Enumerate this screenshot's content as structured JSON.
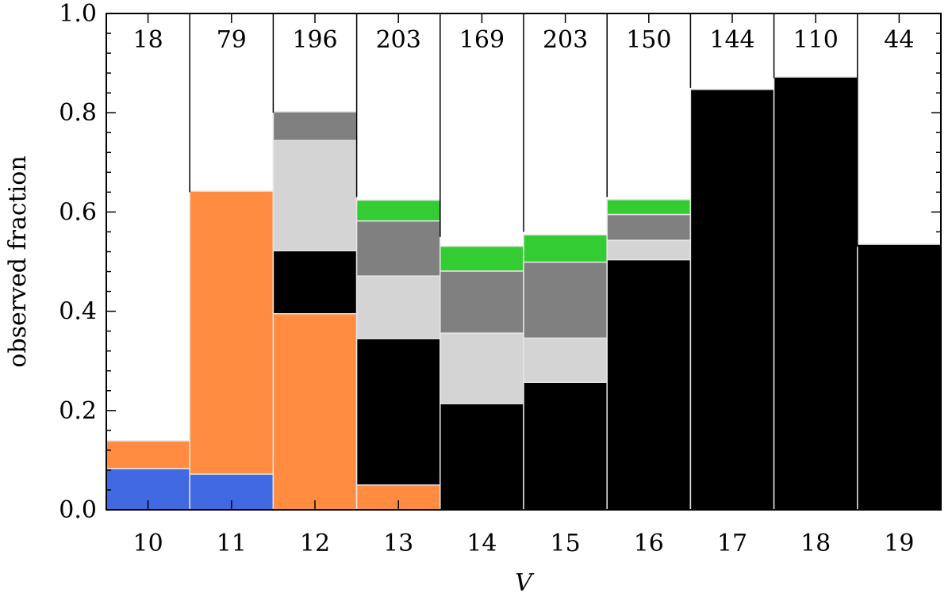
{
  "chart_data": {
    "type": "bar",
    "stacked": true,
    "xlabel": "V",
    "ylabel": "observed fraction",
    "ylim": [
      0.0,
      1.0
    ],
    "yticks": [
      "0.0",
      "0.2",
      "0.4",
      "0.6",
      "0.8",
      "1.0"
    ],
    "categories": [
      "10",
      "11",
      "12",
      "13",
      "14",
      "15",
      "16",
      "17",
      "18",
      "19"
    ],
    "counts": [
      "18",
      "79",
      "196",
      "203",
      "169",
      "203",
      "150",
      "144",
      "110",
      "44"
    ],
    "divider_bottoms": [
      0.8,
      0.64,
      0.8,
      0.63,
      0.55,
      0.56,
      0.63,
      0.85,
      0.87,
      0.53
    ],
    "series": [
      {
        "color": "#000000",
        "values": [
          0,
          0,
          0.127,
          0.295,
          0.214,
          0.257,
          0.504,
          0.847,
          0.872,
          0.535
        ]
      },
      {
        "color": "#d4d4d4",
        "values": [
          0,
          0,
          0.222,
          0.126,
          0.142,
          0.089,
          0.039,
          0,
          0,
          0
        ]
      },
      {
        "color": "#808080",
        "values": [
          0,
          0,
          0.058,
          0.111,
          0.125,
          0.153,
          0.052,
          0,
          0,
          0
        ]
      },
      {
        "color": "#33cc33",
        "values": [
          0,
          0,
          0,
          0.042,
          0.05,
          0.055,
          0.03,
          0,
          0,
          0
        ]
      },
      {
        "color": "#ff8c40",
        "values": [
          0.056,
          0.57,
          0.395,
          0.05,
          0,
          0,
          0,
          0,
          0,
          0
        ]
      },
      {
        "color": "#4169e1",
        "values": [
          0.083,
          0.072,
          0,
          0,
          0,
          0,
          0,
          0,
          0,
          0
        ]
      }
    ],
    "stack_order": [
      5,
      4,
      0,
      1,
      2,
      3
    ],
    "grid": false,
    "legend": "none"
  }
}
